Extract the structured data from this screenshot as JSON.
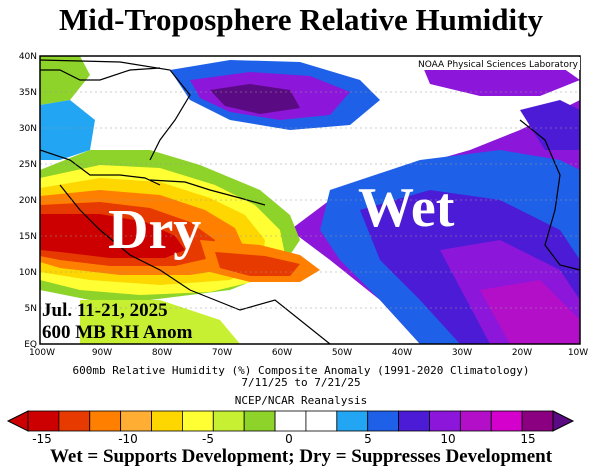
{
  "title": "Mid-Troposphere Relative Humidity",
  "map": {
    "credit": "NOAA Physical Sciences Laboratory",
    "dry_label": "Dry",
    "wet_label": "Wet",
    "date_overlay": "Jul. 11-21, 2025",
    "variable_overlay": "600 MB RH Anom",
    "lat_labels": [
      "40N",
      "35N",
      "30N",
      "25N",
      "20N",
      "15N",
      "10N",
      "5N",
      "EQ"
    ],
    "lon_labels": [
      "100W",
      "90W",
      "80W",
      "70W",
      "60W",
      "50W",
      "40W",
      "30W",
      "20W",
      "10W"
    ]
  },
  "caption": {
    "line1": "600mb Relative Humidity (%) Composite Anomaly (1991-2020 Climatology)",
    "line2": "7/11/25  to 7/21/25",
    "source": "NCEP/NCAR Reanalysis"
  },
  "legend": {
    "tick_labels": [
      "-15",
      "-10",
      "-5",
      "0",
      "5",
      "10",
      "15"
    ],
    "colors": [
      "#cc0000",
      "#e63a00",
      "#ff7f00",
      "#ffad33",
      "#ffd700",
      "#ffff33",
      "#c8f032",
      "#8ed32a",
      "#ffffff",
      "#ffffff",
      "#22a5f2",
      "#1f60e8",
      "#4b1bd6",
      "#8c16d9",
      "#b30fc9",
      "#d400cc",
      "#8a0080"
    ]
  },
  "footer": "Wet = Supports Development; Dry = Suppresses Development"
}
